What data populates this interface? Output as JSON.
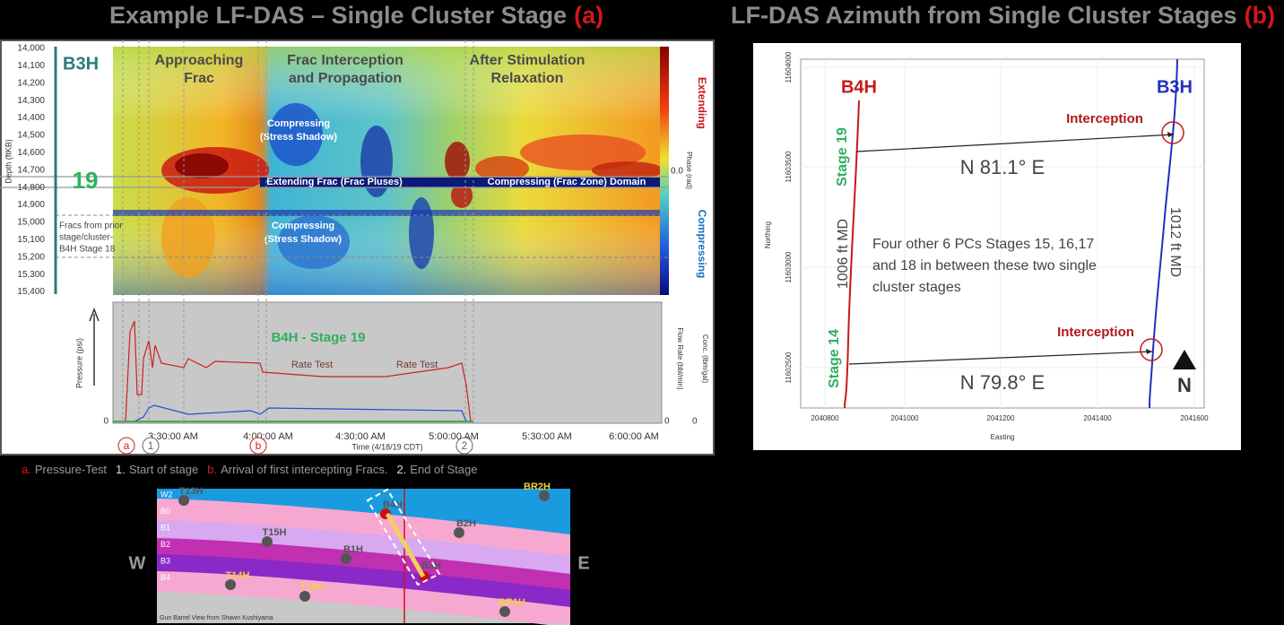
{
  "panel_a": {
    "title": "Example LF-DAS – Single Cluster Stage",
    "tag": "(a)",
    "heatmap": {
      "well": "B3H",
      "stage": "19",
      "axis_label": "Depth (ftKB)",
      "depth_ticks": [
        "14,000",
        "14,100",
        "14,200",
        "14,300",
        "14,400",
        "14,500",
        "14,600",
        "14,700",
        "14,800",
        "14,900",
        "15,000",
        "15,100",
        "15,200",
        "15,300",
        "15,400"
      ],
      "prior_note": [
        "Fracs from prior",
        "stage/cluster-",
        "B4H Stage 18"
      ],
      "phases": [
        [
          "Approaching",
          "Frac"
        ],
        [
          "Frac Interception",
          "and Propagation"
        ],
        [
          "After Stimulation",
          "Relaxation"
        ]
      ],
      "annotations": {
        "upper": [
          "Compressing",
          "(Stress Shadow)"
        ],
        "extending": "Extending Frac (Frac Pluses)",
        "frac_zone": "Compressing (Frac Zone) Domain",
        "lower": [
          "Compressing",
          "(Stress Shadow)"
        ]
      },
      "colorbar": {
        "top": "Extending",
        "bottom": "Compressing",
        "label": "Phase (rad)",
        "zero": "0.0"
      }
    },
    "pump_chart": {
      "title": "B4H - Stage 19",
      "rate_tests": [
        "Rate Test",
        "Rate Test"
      ],
      "y_label": "Pressure (psi)",
      "y_zero": "0",
      "y2_labels": [
        "Flow Rate (bbl/min)",
        "Conc. (lbm/gal)"
      ],
      "y2_zeros": [
        "0",
        "0"
      ],
      "time_ticks": [
        "3:30:00 AM",
        "4:00:00 AM",
        "4:30:00 AM",
        "5:00:00 AM",
        "5:30:00 AM",
        "6:00:00 AM"
      ],
      "x_label": "Time (4/18/19 CDT)",
      "markers": [
        "a",
        "1",
        "b",
        "2"
      ]
    },
    "legend": [
      [
        "a.",
        "Pressure-Test"
      ],
      [
        "1.",
        "Start of stage"
      ],
      [
        "b.",
        "Arrival of first intercepting Fracs."
      ],
      [
        "2.",
        "End of Stage"
      ]
    ]
  },
  "gun_barrel": {
    "west": "W",
    "east": "E",
    "layers": [
      "W2",
      "B0",
      "B1",
      "B2",
      "B3",
      "B4"
    ],
    "wells": [
      "T13H",
      "T15H",
      "B1H",
      "B4H",
      "B2H",
      "BR2H",
      "T14H",
      "T16H",
      "B3H",
      "BR1H"
    ],
    "credit": "Gun Barrel View from Shawn Kushiyama"
  },
  "panel_b": {
    "title": "LF-DAS Azimuth from Single Cluster Stages",
    "tag": "(b)",
    "y_label": "Northing",
    "x_label": "Easting",
    "yticks": [
      "11604000",
      "11603500",
      "11603000",
      "11602500"
    ],
    "xticks": [
      "2040800",
      "2041000",
      "2041200",
      "2041400",
      "2041600"
    ],
    "wells": [
      "B4H",
      "B3H"
    ],
    "stages": [
      "Stage 19",
      "Stage 14"
    ],
    "interceptions": [
      "Interception",
      "Interception"
    ],
    "azimuths": [
      "N 81.1° E",
      "N 79.8° E"
    ],
    "lengths": [
      "1006 ft MD",
      "1012 ft MD"
    ],
    "note": [
      "Four other 6 PCs Stages 15, 16,17",
      "and 18 in between these two single",
      "cluster stages"
    ],
    "north": "N"
  }
}
